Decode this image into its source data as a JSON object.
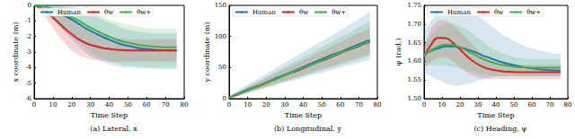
{
  "chart_data": [
    {
      "type": "line",
      "title": "(a) Lateral, x",
      "xlabel": "Time Step",
      "ylabel": "x coordinate (m)",
      "legend": "upper left",
      "grid": false,
      "xlim": [
        0,
        80
      ],
      "xticks": [
        0,
        10,
        20,
        30,
        40,
        50,
        60,
        70,
        80
      ],
      "ylim": [
        -6,
        0
      ],
      "yticks": [
        -6,
        -5,
        -4,
        -3,
        -2,
        -1,
        0
      ],
      "x": [
        0,
        4,
        8,
        12,
        16,
        20,
        24,
        28,
        32,
        36,
        40,
        44,
        48,
        52,
        56,
        60,
        64,
        68,
        72,
        76
      ],
      "series": [
        {
          "name": "Human",
          "color": "#1f77b4",
          "values": [
            0,
            -0.05,
            -0.2,
            -0.4,
            -0.65,
            -0.9,
            -1.2,
            -1.5,
            -1.75,
            -2.0,
            -2.2,
            -2.4,
            -2.55,
            -2.65,
            -2.75,
            -2.8,
            -2.85,
            -2.88,
            -2.9,
            -2.9
          ],
          "lower": [
            0,
            -0.3,
            -0.7,
            -1.2,
            -1.7,
            -2.2,
            -2.7,
            -3.1,
            -3.4,
            -3.6,
            -3.8,
            -3.9,
            -4.0,
            -4.0,
            -4.05,
            -4.05,
            -4.1,
            -4.1,
            -4.1,
            -4.1
          ],
          "upper": [
            0,
            0,
            0,
            0,
            -0.1,
            -0.2,
            -0.35,
            -0.5,
            -0.7,
            -0.9,
            -1.1,
            -1.3,
            -1.5,
            -1.6,
            -1.7,
            -1.75,
            -1.8,
            -1.8,
            -1.8,
            -1.8
          ]
        },
        {
          "name": "θw",
          "color": "#e0202a",
          "values": [
            0,
            -0.2,
            -0.55,
            -1.0,
            -1.45,
            -1.85,
            -2.2,
            -2.45,
            -2.6,
            -2.72,
            -2.8,
            -2.85,
            -2.88,
            -2.9,
            -2.9,
            -2.9,
            -2.9,
            -2.9,
            -2.9,
            -2.9
          ],
          "lower": [
            0,
            -0.5,
            -1.1,
            -1.8,
            -2.4,
            -2.9,
            -3.2,
            -3.4,
            -3.5,
            -3.55,
            -3.6,
            -3.6,
            -3.6,
            -3.6,
            -3.6,
            -3.6,
            -3.6,
            -3.6,
            -3.6,
            -3.6
          ],
          "upper": [
            0,
            0,
            0,
            -0.3,
            -0.6,
            -0.9,
            -1.2,
            -1.5,
            -1.7,
            -1.9,
            -2.0,
            -2.1,
            -2.15,
            -2.2,
            -2.2,
            -2.2,
            -2.2,
            -2.2,
            -2.2,
            -2.2
          ]
        },
        {
          "name": "θw+",
          "color": "#3cb44b",
          "values": [
            0,
            -0.05,
            -0.15,
            -0.3,
            -0.5,
            -0.75,
            -1.0,
            -1.3,
            -1.55,
            -1.8,
            -2.0,
            -2.2,
            -2.35,
            -2.45,
            -2.55,
            -2.6,
            -2.65,
            -2.68,
            -2.7,
            -2.7
          ],
          "lower": [
            0,
            -0.3,
            -0.7,
            -1.2,
            -1.6,
            -2.0,
            -2.4,
            -2.8,
            -3.1,
            -3.4,
            -3.6,
            -3.75,
            -3.85,
            -3.9,
            -3.95,
            -3.95,
            -4.0,
            -4.0,
            -4.0,
            -4.0
          ],
          "upper": [
            0,
            0,
            0,
            0,
            0,
            -0.1,
            -0.2,
            -0.35,
            -0.5,
            -0.7,
            -0.9,
            -1.05,
            -1.2,
            -1.3,
            -1.4,
            -1.45,
            -1.5,
            -1.5,
            -1.5,
            -1.5
          ]
        }
      ]
    },
    {
      "type": "line",
      "title": "(b) Longitudinal, y",
      "xlabel": "Time Step",
      "ylabel": "y coordinate (m)",
      "legend": "upper left",
      "grid": false,
      "xlim": [
        0,
        80
      ],
      "xticks": [
        0,
        10,
        20,
        30,
        40,
        50,
        60,
        70,
        80
      ],
      "ylim": [
        0,
        150
      ],
      "yticks": [
        0,
        50,
        100,
        150
      ],
      "x": [
        0,
        4,
        8,
        12,
        16,
        20,
        24,
        28,
        32,
        36,
        40,
        44,
        48,
        52,
        56,
        60,
        64,
        68,
        72,
        76
      ],
      "series": [
        {
          "name": "Human",
          "color": "#1f77b4",
          "values": [
            2,
            7,
            12,
            17,
            21,
            26,
            31,
            36,
            41,
            46,
            51,
            56,
            61,
            66,
            71,
            75,
            80,
            85,
            90,
            94
          ],
          "lower": [
            0,
            3,
            7,
            10,
            14,
            17,
            20,
            24,
            27,
            30,
            34,
            37,
            40,
            43,
            47,
            50,
            53,
            56,
            59,
            62
          ],
          "upper": [
            4,
            12,
            19,
            26,
            33,
            40,
            47,
            54,
            61,
            68,
            75,
            82,
            89,
            96,
            103,
            110,
            117,
            124,
            132,
            140
          ]
        },
        {
          "name": "θw",
          "color": "#e0202a",
          "values": [
            2,
            6,
            11,
            16,
            20,
            25,
            30,
            35,
            40,
            44,
            49,
            54,
            59,
            63,
            68,
            73,
            78,
            82,
            87,
            91
          ],
          "lower": [
            1,
            4,
            8,
            12,
            15,
            19,
            23,
            27,
            31,
            34,
            38,
            42,
            46,
            49,
            53,
            57,
            61,
            64,
            68,
            72
          ],
          "upper": [
            3,
            9,
            15,
            21,
            27,
            33,
            39,
            45,
            50,
            56,
            62,
            68,
            74,
            79,
            85,
            91,
            97,
            103,
            108,
            113
          ]
        },
        {
          "name": "θw+",
          "color": "#3cb44b",
          "values": [
            2,
            7,
            11,
            16,
            21,
            26,
            30,
            35,
            40,
            45,
            50,
            54,
            59,
            64,
            69,
            74,
            78,
            83,
            88,
            92
          ],
          "lower": [
            1,
            4,
            8,
            11,
            15,
            19,
            22,
            26,
            29,
            33,
            36,
            40,
            43,
            47,
            50,
            54,
            57,
            61,
            64,
            68
          ],
          "upper": [
            3,
            10,
            16,
            23,
            29,
            35,
            42,
            48,
            54,
            61,
            67,
            73,
            80,
            86,
            92,
            99,
            105,
            111,
            118,
            125
          ]
        }
      ]
    },
    {
      "type": "line",
      "title": "(c) Heading, ψ",
      "xlabel": "Time Step",
      "ylabel": "ψ (rad.)",
      "legend": "upper left",
      "grid": false,
      "xlim": [
        0,
        80
      ],
      "xticks": [
        0,
        10,
        20,
        30,
        40,
        50,
        60,
        70,
        80
      ],
      "ylim": [
        1.5,
        1.75
      ],
      "yticks": [
        {
          "value": 1.5,
          "label": "1.50"
        },
        1.55,
        {
          "value": 1.6,
          "label": "1.60"
        },
        1.65,
        {
          "value": 1.7,
          "label": "1.70"
        },
        1.75
      ],
      "x": [
        0,
        4,
        8,
        12,
        16,
        20,
        24,
        28,
        32,
        36,
        40,
        44,
        48,
        52,
        56,
        60,
        64,
        68,
        72,
        76
      ],
      "series": [
        {
          "name": "Human",
          "color": "#1f77b4",
          "values": [
            1.62,
            1.628,
            1.635,
            1.64,
            1.64,
            1.637,
            1.632,
            1.625,
            1.617,
            1.61,
            1.603,
            1.597,
            1.592,
            1.588,
            1.584,
            1.581,
            1.579,
            1.577,
            1.576,
            1.575
          ],
          "lower": [
            1.57,
            1.56,
            1.55,
            1.54,
            1.535,
            1.535,
            1.54,
            1.545,
            1.55,
            1.555,
            1.56,
            1.56,
            1.56,
            1.56,
            1.56,
            1.56,
            1.56,
            1.56,
            1.56,
            1.56
          ],
          "upper": [
            1.68,
            1.71,
            1.73,
            1.74,
            1.745,
            1.745,
            1.74,
            1.73,
            1.715,
            1.7,
            1.685,
            1.67,
            1.66,
            1.65,
            1.64,
            1.635,
            1.63,
            1.625,
            1.62,
            1.62
          ]
        },
        {
          "name": "θw",
          "color": "#e0202a",
          "values": [
            1.61,
            1.645,
            1.663,
            1.662,
            1.65,
            1.632,
            1.613,
            1.598,
            1.587,
            1.58,
            1.576,
            1.573,
            1.572,
            1.571,
            1.571,
            1.571,
            1.571,
            1.571,
            1.571,
            1.571
          ],
          "lower": [
            1.58,
            1.6,
            1.61,
            1.61,
            1.6,
            1.585,
            1.57,
            1.56,
            1.555,
            1.553,
            1.552,
            1.552,
            1.552,
            1.552,
            1.552,
            1.552,
            1.552,
            1.552,
            1.552,
            1.552
          ],
          "upper": [
            1.64,
            1.69,
            1.71,
            1.71,
            1.7,
            1.68,
            1.66,
            1.64,
            1.62,
            1.605,
            1.6,
            1.595,
            1.592,
            1.59,
            1.59,
            1.59,
            1.59,
            1.59,
            1.59,
            1.59
          ]
        },
        {
          "name": "θw+",
          "color": "#3cb44b",
          "values": [
            1.615,
            1.63,
            1.64,
            1.645,
            1.644,
            1.638,
            1.628,
            1.618,
            1.608,
            1.6,
            1.594,
            1.59,
            1.587,
            1.585,
            1.584,
            1.583,
            1.583,
            1.583,
            1.583,
            1.583
          ],
          "lower": [
            1.59,
            1.59,
            1.59,
            1.59,
            1.585,
            1.58,
            1.575,
            1.57,
            1.565,
            1.562,
            1.56,
            1.56,
            1.56,
            1.56,
            1.56,
            1.56,
            1.56,
            1.56,
            1.56,
            1.56
          ],
          "upper": [
            1.64,
            1.67,
            1.69,
            1.7,
            1.7,
            1.695,
            1.685,
            1.67,
            1.655,
            1.64,
            1.63,
            1.62,
            1.615,
            1.61,
            1.608,
            1.606,
            1.606,
            1.606,
            1.606,
            1.606
          ]
        }
      ]
    }
  ]
}
